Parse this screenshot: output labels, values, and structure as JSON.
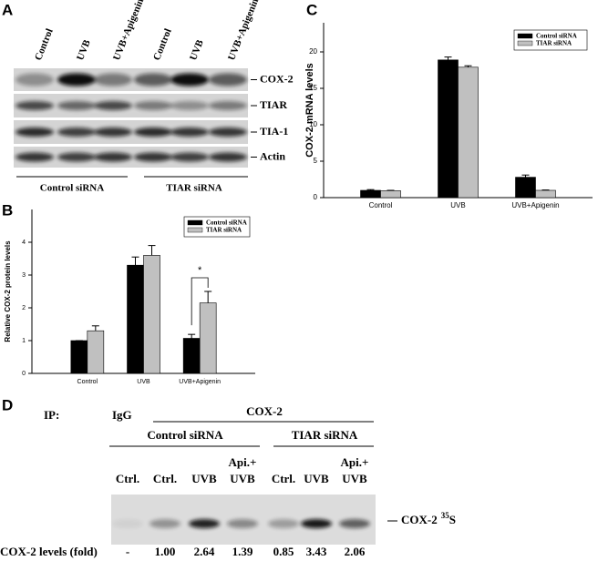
{
  "panel_a": {
    "label": "A",
    "lanes": [
      "Control",
      "UVB",
      "UVB+Apigenin",
      "Control",
      "UVB",
      "UVB+Apigenin"
    ],
    "bands": [
      "COX-2",
      "TIAR",
      "TIA-1",
      "Actin"
    ],
    "groups": [
      "Control siRNA",
      "TIAR siRNA"
    ]
  },
  "chart_data": [
    {
      "panel": "B",
      "type": "bar",
      "ylabel": "Relative COX-2 protein levels",
      "categories": [
        "Control",
        "UVB",
        "UVB+Apigenin"
      ],
      "series": [
        {
          "name": "Control siRNA",
          "color": "#000000",
          "values": [
            1.0,
            3.3,
            1.07
          ],
          "errors": [
            0,
            0.25,
            0.12
          ]
        },
        {
          "name": "TIAR siRNA",
          "color": "#c0c0c0",
          "values": [
            1.3,
            3.6,
            2.15
          ],
          "errors": [
            0.15,
            0.3,
            0.35
          ]
        }
      ],
      "ylim": [
        0,
        5
      ],
      "yticks": [
        0,
        1,
        2,
        3,
        4
      ],
      "legend": "upper right",
      "annotation": "*"
    },
    {
      "panel": "C",
      "type": "bar",
      "ylabel": "COX-2 mRNA levels",
      "categories": [
        "Control",
        "UVB",
        "UVB+Apigenin"
      ],
      "series": [
        {
          "name": "Control siRNA",
          "color": "#000000",
          "values": [
            1.0,
            18.9,
            2.8
          ],
          "errors": [
            0.1,
            0.4,
            0.3
          ]
        },
        {
          "name": "TIAR siRNA",
          "color": "#c0c0c0",
          "values": [
            0.95,
            17.9,
            1.0
          ],
          "errors": [
            0.05,
            0.2,
            0.05
          ]
        }
      ],
      "ylim": [
        0,
        24
      ],
      "yticks": [
        0,
        5,
        10,
        15,
        20
      ],
      "legend": "upper right"
    }
  ],
  "panel_d": {
    "label": "D",
    "ip_label": "IP:",
    "ip_groups": [
      "IgG",
      "COX-2"
    ],
    "groups": [
      "Control siRNA",
      "TIAR siRNA"
    ],
    "lanes": [
      [
        "Ctrl."
      ],
      [
        "Ctrl."
      ],
      [
        "UVB"
      ],
      [
        "Api.+",
        "UVB"
      ],
      [
        "Ctrl."
      ],
      [
        "UVB"
      ],
      [
        "Api.+",
        "UVB"
      ]
    ],
    "band_label": "COX-2",
    "isotope_mass": "35",
    "isotope_element": "S",
    "row_label": "COX-2 levels (fold)",
    "levels": [
      "-",
      "1.00",
      "2.64",
      "1.39",
      "0.85",
      "3.43",
      "2.06"
    ]
  }
}
